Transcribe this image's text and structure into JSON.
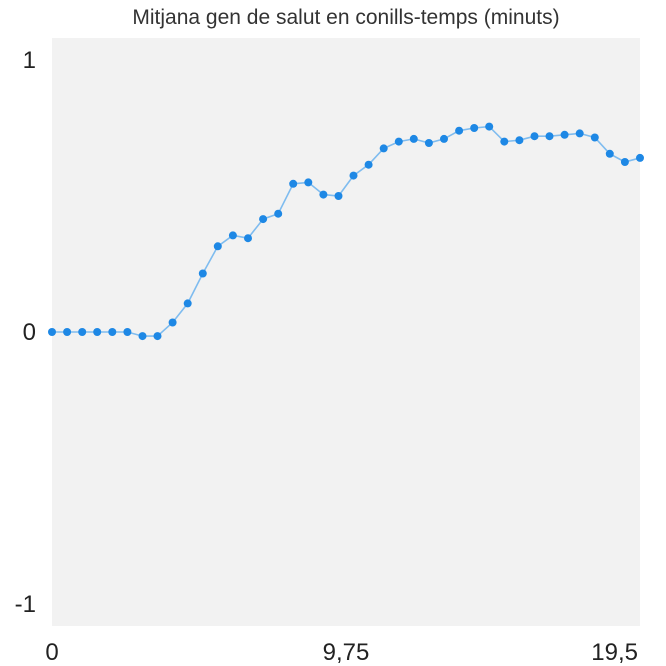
{
  "chart_data": {
    "type": "line",
    "title": "Mitjana gen de salut en conills-temps (minuts)",
    "xlabel": "",
    "ylabel": "",
    "xlim": [
      0,
      19.5
    ],
    "ylim": [
      -1,
      1
    ],
    "x_ticks": [
      {
        "value": 0,
        "label": "0"
      },
      {
        "value": 9.75,
        "label": "9,75"
      },
      {
        "value": 19.5,
        "label": "19,5"
      }
    ],
    "y_ticks": [
      {
        "value": 1,
        "label": "1"
      },
      {
        "value": 0,
        "label": "0"
      },
      {
        "value": -1,
        "label": "-1"
      }
    ],
    "grid": false,
    "background_color": "#f2f2f2",
    "line_color": "#7fbcef",
    "marker_color": "#1e88e5",
    "series": [
      {
        "x": [
          0,
          0.5,
          1.0,
          1.5,
          2.0,
          2.5,
          3.0,
          3.5,
          4.0,
          4.5,
          5.0,
          5.5,
          6.0,
          6.5,
          7.0,
          7.5,
          8.0,
          8.5,
          9.0,
          9.5,
          10.0,
          10.5,
          11.0,
          11.5,
          12.0,
          12.5,
          13.0,
          13.5,
          14.0,
          14.5,
          15.0,
          15.5,
          16.0,
          16.5,
          17.0,
          17.5,
          18.0,
          18.5,
          19.0,
          19.5
        ],
        "y": [
          0.0,
          0.0,
          0.0,
          0.0,
          0.0,
          0.0,
          -0.015,
          -0.015,
          0.035,
          0.105,
          0.215,
          0.315,
          0.355,
          0.345,
          0.415,
          0.435,
          0.545,
          0.55,
          0.505,
          0.5,
          0.575,
          0.615,
          0.675,
          0.7,
          0.71,
          0.695,
          0.71,
          0.74,
          0.75,
          0.755,
          0.7,
          0.705,
          0.72,
          0.72,
          0.725,
          0.73,
          0.715,
          0.655,
          0.625,
          0.64
        ]
      }
    ]
  }
}
